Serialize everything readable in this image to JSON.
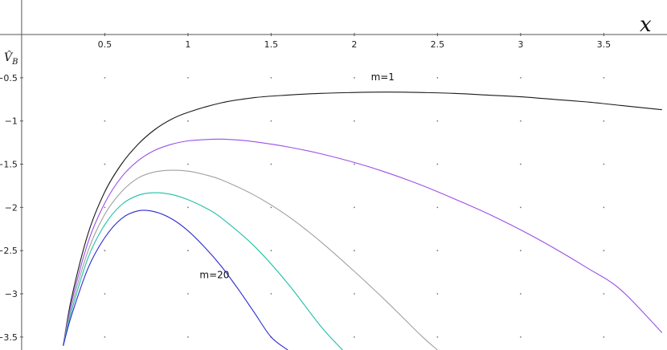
{
  "chart_data": {
    "type": "line",
    "xlabel": "x",
    "ylabel": "V̂",
    "ylabel_sub": "B",
    "xlim": [
      -0.13,
      3.88
    ],
    "ylim": [
      -3.65,
      0.4
    ],
    "grid": "dots",
    "x_ticks": [
      {
        "value": 0.5,
        "label": "0.5"
      },
      {
        "value": 1,
        "label": "1"
      },
      {
        "value": 1.5,
        "label": "1.5"
      },
      {
        "value": 2,
        "label": "2"
      },
      {
        "value": 2.5,
        "label": "2.5"
      },
      {
        "value": 3,
        "label": "3"
      },
      {
        "value": 3.5,
        "label": "3.5"
      }
    ],
    "y_ticks": [
      {
        "value": -0.5,
        "label": "−0.5"
      },
      {
        "value": -1,
        "label": "−1"
      },
      {
        "value": -1.5,
        "label": "−1.5"
      },
      {
        "value": -2,
        "label": "−2"
      },
      {
        "value": -2.5,
        "label": "−2.5"
      },
      {
        "value": -3,
        "label": "−3"
      },
      {
        "value": -3.5,
        "label": "−3.5"
      }
    ],
    "annotations": [
      {
        "text": "m=1",
        "x": 2.1,
        "y": -0.53
      },
      {
        "text": "m=20",
        "x": 1.07,
        "y": -2.82
      }
    ],
    "series": [
      {
        "color": "#1a1a1a",
        "x": [
          0.25,
          0.3,
          0.4,
          0.5,
          0.6,
          0.7,
          0.8,
          0.9,
          1.0,
          1.2,
          1.4,
          1.6,
          1.8,
          2.0,
          2.2,
          2.4,
          2.6,
          2.8,
          3.0,
          3.2,
          3.4,
          3.6,
          3.85
        ],
        "y": [
          -3.6,
          -3.05,
          -2.3,
          -1.82,
          -1.5,
          -1.27,
          -1.1,
          -0.98,
          -0.9,
          -0.79,
          -0.73,
          -0.7,
          -0.68,
          -0.67,
          -0.665,
          -0.67,
          -0.68,
          -0.7,
          -0.72,
          -0.75,
          -0.78,
          -0.82,
          -0.87
        ]
      },
      {
        "color": "#9b4fe6",
        "x": [
          0.25,
          0.3,
          0.4,
          0.5,
          0.6,
          0.7,
          0.8,
          0.9,
          1.0,
          1.1,
          1.2,
          1.3,
          1.4,
          1.6,
          1.8,
          2.0,
          2.2,
          2.4,
          2.6,
          2.8,
          3.0,
          3.2,
          3.4,
          3.6,
          3.85
        ],
        "y": [
          -3.6,
          -3.1,
          -2.4,
          -1.95,
          -1.65,
          -1.46,
          -1.34,
          -1.27,
          -1.23,
          -1.215,
          -1.21,
          -1.22,
          -1.24,
          -1.3,
          -1.38,
          -1.48,
          -1.6,
          -1.74,
          -1.9,
          -2.07,
          -2.26,
          -2.47,
          -2.7,
          -2.95,
          -3.45
        ]
      },
      {
        "color": "#a0a0a0",
        "x": [
          0.25,
          0.3,
          0.4,
          0.5,
          0.6,
          0.7,
          0.8,
          0.9,
          1.0,
          1.1,
          1.2,
          1.4,
          1.6,
          1.8,
          2.0,
          2.2,
          2.4,
          2.5
        ],
        "y": [
          -3.6,
          -3.15,
          -2.5,
          -2.08,
          -1.82,
          -1.66,
          -1.59,
          -1.57,
          -1.58,
          -1.62,
          -1.68,
          -1.86,
          -2.1,
          -2.4,
          -2.74,
          -3.1,
          -3.48,
          -3.65
        ]
      },
      {
        "color": "#20c0a8",
        "x": [
          0.25,
          0.3,
          0.4,
          0.5,
          0.6,
          0.7,
          0.8,
          0.9,
          1.0,
          1.1,
          1.2,
          1.4,
          1.6,
          1.8,
          1.93
        ],
        "y": [
          -3.6,
          -3.2,
          -2.58,
          -2.2,
          -1.97,
          -1.86,
          -1.83,
          -1.85,
          -1.91,
          -2.0,
          -2.12,
          -2.45,
          -2.88,
          -3.38,
          -3.65
        ]
      },
      {
        "color": "#2b2bd0",
        "x": [
          0.25,
          0.3,
          0.4,
          0.5,
          0.6,
          0.7,
          0.8,
          0.9,
          1.0,
          1.1,
          1.2,
          1.3,
          1.4,
          1.5,
          1.6
        ],
        "y": [
          -3.6,
          -3.25,
          -2.7,
          -2.35,
          -2.13,
          -2.04,
          -2.05,
          -2.13,
          -2.27,
          -2.46,
          -2.68,
          -2.94,
          -3.22,
          -3.5,
          -3.65
        ]
      }
    ]
  }
}
